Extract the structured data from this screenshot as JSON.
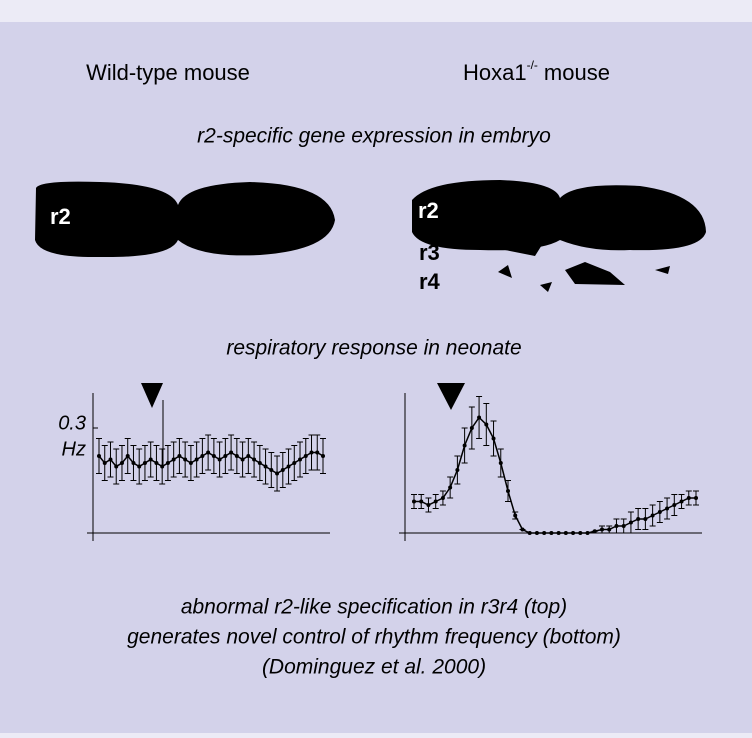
{
  "header": {
    "left": "Wild-type mouse",
    "right_gene": "Hoxa1",
    "right_sup": "-/-",
    "right_rest": "mouse"
  },
  "section1": "r2-specific gene expression in embryo",
  "embryo_labels": {
    "left_r2": "r2",
    "right_r2": "r2",
    "r3": "r3",
    "r4": "r4"
  },
  "section2": "respiratory response in neonate",
  "caption": [
    "abnormal r2-like specification in r3r4 (top)",
    "generates novel control of rhythm frequency (bottom)",
    "(Dominguez et al. 2000)"
  ],
  "chart_data": [
    {
      "type": "line",
      "color": "#000000",
      "categories": [
        null,
        null,
        null,
        null,
        null,
        null,
        null,
        null,
        null,
        null,
        null,
        null,
        null,
        null,
        null,
        null,
        null,
        null,
        null,
        null,
        null,
        null,
        null,
        null,
        null,
        null,
        null,
        null,
        null,
        null,
        null,
        null,
        null,
        null,
        null,
        null,
        null,
        null,
        null,
        null
      ],
      "values": [
        0.22,
        0.2,
        0.21,
        0.19,
        0.2,
        0.22,
        0.2,
        0.19,
        0.2,
        0.21,
        0.2,
        0.19,
        0.2,
        0.21,
        0.22,
        0.21,
        0.2,
        0.21,
        0.22,
        0.23,
        0.22,
        0.21,
        0.22,
        0.23,
        0.22,
        0.21,
        0.22,
        0.21,
        0.2,
        0.19,
        0.18,
        0.17,
        0.18,
        0.19,
        0.2,
        0.21,
        0.22,
        0.23,
        0.23,
        0.22
      ],
      "errors": [
        0.05,
        0.05,
        0.05,
        0.05,
        0.05,
        0.05,
        0.05,
        0.05,
        0.05,
        0.05,
        0.05,
        0.05,
        0.05,
        0.05,
        0.05,
        0.05,
        0.05,
        0.05,
        0.05,
        0.05,
        0.05,
        0.05,
        0.05,
        0.05,
        0.05,
        0.05,
        0.05,
        0.05,
        0.05,
        0.05,
        0.05,
        0.05,
        0.05,
        0.05,
        0.05,
        0.05,
        0.05,
        0.05,
        0.05,
        0.05
      ],
      "ylim": [
        0,
        0.4
      ],
      "yticks": [
        0.3
      ],
      "ylabel": "Hz"
    },
    {
      "type": "line",
      "color": "#000000",
      "categories": [
        null,
        null,
        null,
        null,
        null,
        null,
        null,
        null,
        null,
        null,
        null,
        null,
        null,
        null,
        null,
        null,
        null,
        null,
        null,
        null,
        null,
        null,
        null,
        null,
        null,
        null,
        null,
        null,
        null,
        null,
        null,
        null,
        null,
        null,
        null,
        null,
        null,
        null,
        null,
        null
      ],
      "values": [
        0.09,
        0.09,
        0.08,
        0.09,
        0.1,
        0.13,
        0.18,
        0.25,
        0.3,
        0.33,
        0.31,
        0.27,
        0.2,
        0.12,
        0.05,
        0.01,
        0,
        0,
        0,
        0,
        0,
        0,
        0,
        0,
        0,
        0.005,
        0.01,
        0.01,
        0.02,
        0.02,
        0.03,
        0.04,
        0.04,
        0.05,
        0.06,
        0.07,
        0.08,
        0.09,
        0.1,
        0.1
      ],
      "errors": [
        0.02,
        0.02,
        0.02,
        0.02,
        0.02,
        0.03,
        0.04,
        0.05,
        0.06,
        0.06,
        0.06,
        0.05,
        0.04,
        0.03,
        0.01,
        0,
        0,
        0,
        0,
        0,
        0,
        0,
        0,
        0,
        0,
        0,
        0.01,
        0.01,
        0.02,
        0.02,
        0.03,
        0.03,
        0.03,
        0.03,
        0.03,
        0.03,
        0.03,
        0.02,
        0.02,
        0.02
      ],
      "ylim": [
        0,
        0.4
      ]
    }
  ]
}
